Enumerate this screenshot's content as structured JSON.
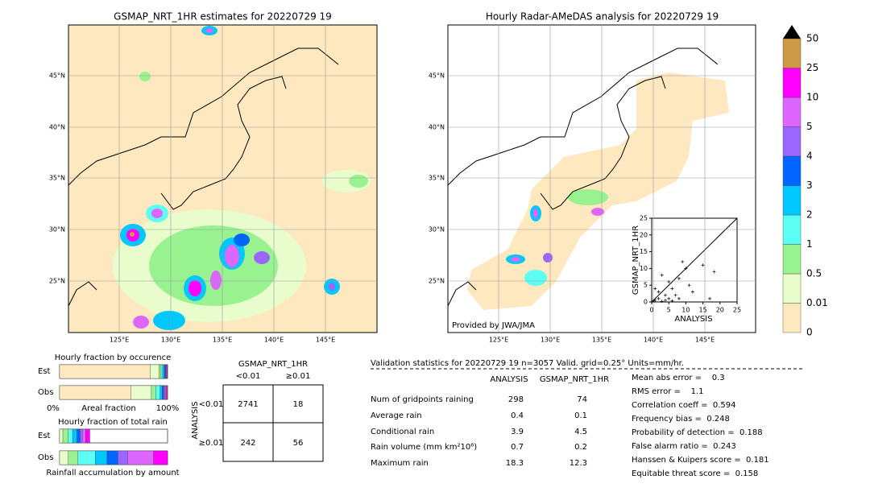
{
  "maps": [
    {
      "title": "GSMAP_NRT_1HR estimates for 20220729 19",
      "lat_labels": [
        "45°N",
        "40°N",
        "35°N",
        "30°N",
        "25°N"
      ],
      "lon_labels": [
        "125°E",
        "130°E",
        "135°E",
        "140°E",
        "145°E"
      ]
    },
    {
      "title": "Hourly Radar-AMeDAS analysis for 20220729 19",
      "lat_labels": [
        "45°N",
        "40°N",
        "35°N",
        "30°N",
        "25°N"
      ],
      "lon_labels": [
        "125°E",
        "130°E",
        "135°E",
        "140°E",
        "145°E"
      ],
      "credit": "Provided by JWA/JMA"
    }
  ],
  "colorbar": {
    "labels": [
      "0",
      "0.01",
      "0.5",
      "1",
      "2",
      "3",
      "4",
      "5",
      "10",
      "25",
      "50"
    ],
    "colors": [
      "#fee8c0",
      "#e8fccc",
      "#99f290",
      "#5cfff4",
      "#00c8ff",
      "#0066ff",
      "#9966ff",
      "#dd66ff",
      "#ff00ff",
      "#cc9944"
    ]
  },
  "scatter": {
    "xlabel": "ANALYSIS",
    "ylabel": "GSMAP_NRT_1HR",
    "ticks": [
      0,
      5,
      10,
      15,
      20,
      25
    ],
    "x": [
      0.5,
      1,
      2,
      3,
      4,
      5,
      6,
      7,
      8,
      1,
      2,
      3,
      5,
      9,
      10,
      12,
      15,
      17,
      18.3,
      6,
      4,
      11,
      8
    ],
    "y": [
      0.3,
      0.5,
      1,
      0.2,
      0.5,
      1,
      0.3,
      2,
      1,
      4,
      3,
      8,
      6,
      12,
      10,
      3,
      11,
      1,
      9,
      4,
      2,
      5,
      7
    ]
  },
  "occurrence": {
    "title": "Hourly fraction by occurence",
    "rows": [
      {
        "name": "Est",
        "values": [
          84,
          8,
          2,
          1.5,
          1.5,
          1,
          0.5,
          0.5,
          0.7,
          0.3
        ]
      },
      {
        "name": "Obs",
        "values": [
          66,
          19,
          4,
          4,
          2,
          1.5,
          1,
          1,
          1,
          0.5
        ]
      }
    ],
    "left": "0%",
    "middle": "Areal fraction",
    "right": "100%"
  },
  "rain_amount": {
    "title": "Hourly fraction of total rain",
    "rows": [
      {
        "name": "Est",
        "values": [
          0,
          3,
          5,
          4,
          4,
          3,
          2,
          3,
          4,
          0
        ]
      },
      {
        "name": "Obs",
        "values": [
          0,
          8,
          9,
          16,
          11,
          10,
          9,
          24,
          13,
          0
        ]
      }
    ],
    "footer": "Rainfall accumulation by amount"
  },
  "contingency": {
    "title": "GSMAP_NRT_1HR",
    "col_labels": [
      "<0.01",
      "≥0.01"
    ],
    "row_title": "ANALYSIS",
    "row_labels": [
      "<0.01",
      "≥0.01"
    ],
    "cells": [
      [
        2741,
        18
      ],
      [
        242,
        56
      ]
    ]
  },
  "validation": {
    "title": "Validation statistics for 20220729 19  n=3057 Valid. grid=0.25° Units=mm/hr.",
    "columns": [
      "ANALYSIS",
      "GSMAP_NRT_1HR"
    ],
    "rows": [
      {
        "label": "Num of gridpoints raining",
        "values": [
          "298",
          "74"
        ]
      },
      {
        "label": "Average rain",
        "values": [
          "0.4",
          "0.1"
        ]
      },
      {
        "label": "Conditional rain",
        "values": [
          "3.9",
          "4.5"
        ]
      },
      {
        "label": "Rain volume (mm km²10⁶)",
        "values": [
          "0.7",
          "0.2"
        ]
      },
      {
        "label": "Maximum rain",
        "values": [
          "18.3",
          "12.3"
        ]
      }
    ],
    "scores": [
      "Mean abs error =    0.3",
      "RMS error =    1.1",
      "Correlation coeff =  0.594",
      "Frequency bias =  0.248",
      "Probability of detection =  0.188",
      "False alarm ratio =  0.243",
      "Hanssen & Kuipers score =  0.181",
      "Equitable threat score =  0.158"
    ]
  }
}
